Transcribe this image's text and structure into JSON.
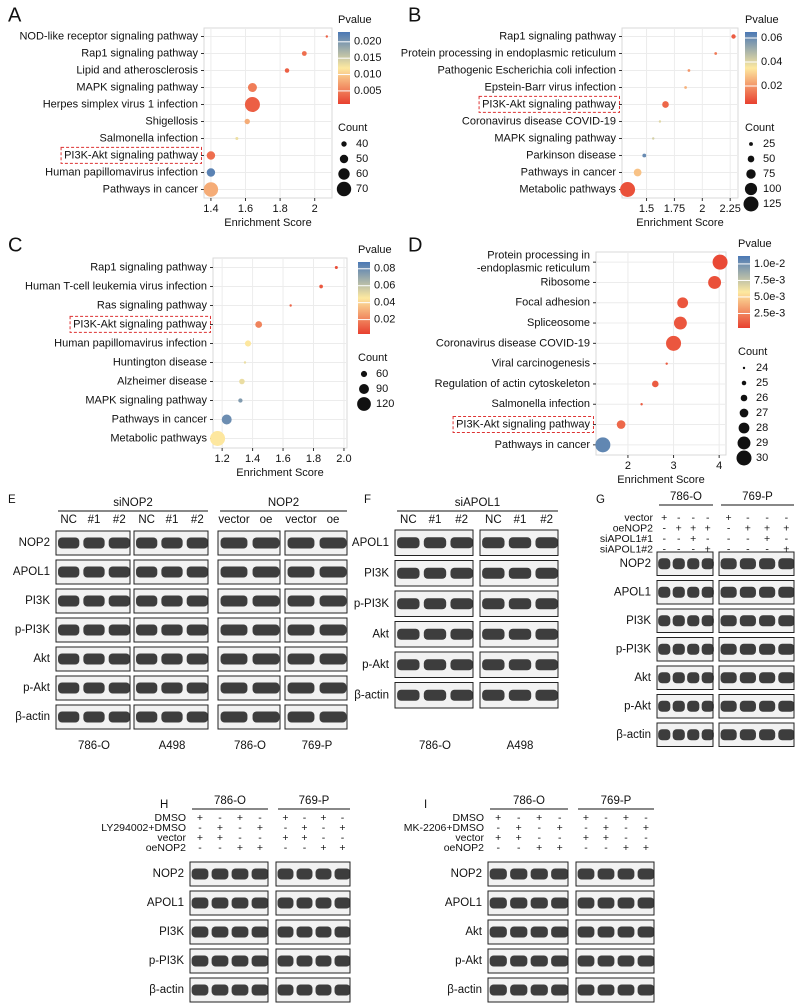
{
  "chart_data": [
    {
      "type": "scatter",
      "panel": "A",
      "x_label": "Enrichment Score",
      "legend_color_title": "Pvalue",
      "legend_size_title": "Count",
      "categories": [
        "NOD-like receptor signaling pathway",
        "Rap1 signaling pathway",
        "Lipid and atherosclerosis",
        "MAPK signaling pathway",
        "Herpes simplex virus 1 infection",
        "Shigellosis",
        "Salmonella infection",
        "PI3K-Akt signaling pathway",
        "Human papillomavirus infection",
        "Pathways in cancer"
      ],
      "x": [
        2.07,
        1.94,
        1.84,
        1.64,
        1.64,
        1.61,
        1.55,
        1.4,
        1.4,
        1.4
      ],
      "pvalue": [
        0.003,
        0.004,
        0.003,
        0.005,
        0.003,
        0.008,
        0.013,
        0.004,
        0.022,
        0.008
      ],
      "count": [
        30,
        38,
        37,
        52,
        72,
        40,
        32,
        50,
        50,
        70
      ],
      "xlim": [
        1.36,
        2.1
      ],
      "xticks": [
        1.4,
        1.6,
        1.8,
        2.0
      ],
      "clim": [
        0.001,
        0.023
      ],
      "cticks": [
        {
          "value": 0.02,
          "label": "0.020"
        },
        0.015,
        {
          "value": 0.01,
          "label": "0.010"
        },
        0.005
      ],
      "size_ticks": [
        40,
        50,
        60,
        70
      ],
      "colors": [
        "#e8402f",
        "#fde9a0",
        "#4a78b5"
      ],
      "grid": true,
      "highlight_index": 7
    },
    {
      "type": "scatter",
      "panel": "B",
      "x_label": "Enrichment Score",
      "legend_color_title": "Pvalue",
      "legend_size_title": "Count",
      "categories": [
        "Rap1 signaling pathway",
        "Protein processing in endoplasmic reticulum",
        "Pathogenic Escherichia coli infection",
        "Epstein-Barr virus infection",
        "PI3K-Akt signaling pathway",
        "Coronavirus disease COVID-19",
        "MAPK signaling pathway",
        "Parkinson disease",
        "Pathways in cancer",
        "Metabolic pathways"
      ],
      "x": [
        2.28,
        2.12,
        1.88,
        1.85,
        1.67,
        1.62,
        1.56,
        1.48,
        1.42,
        1.33
      ],
      "pvalue": [
        0.01,
        0.015,
        0.02,
        0.025,
        0.012,
        0.04,
        0.042,
        0.06,
        0.028,
        0.008
      ],
      "count": [
        30,
        15,
        15,
        15,
        50,
        12,
        12,
        25,
        60,
        125
      ],
      "xlim": [
        1.28,
        2.32
      ],
      "xticks": [
        1.5,
        1.75,
        2,
        2.25
      ],
      "clim": [
        0.005,
        0.065
      ],
      "cticks": [
        0.06,
        0.04,
        0.02
      ],
      "size_ticks": [
        25,
        50,
        75,
        100,
        125
      ],
      "colors": [
        "#e8402f",
        "#fde9a0",
        "#4a78b5"
      ],
      "grid": true,
      "highlight_index": 4
    },
    {
      "type": "scatter",
      "panel": "C",
      "x_label": "Enrichment Score",
      "legend_color_title": "Pvalue",
      "legend_size_title": "Count",
      "categories": [
        "Rap1 signaling pathway",
        "Human T-cell leukemia virus infection",
        "Ras signaling pathway",
        "PI3K-Akt signaling pathway",
        "Human papillomavirus infection",
        "Huntington disease",
        "Alzheimer disease",
        "MAPK signaling pathway",
        "Pathways in cancer",
        "Metabolic pathways"
      ],
      "x": [
        1.95,
        1.85,
        1.65,
        1.44,
        1.37,
        1.35,
        1.33,
        1.32,
        1.23,
        1.17
      ],
      "pvalue": [
        0.006,
        0.009,
        0.012,
        0.02,
        0.045,
        0.05,
        0.05,
        0.075,
        0.08,
        0.045
      ],
      "count": [
        35,
        40,
        30,
        65,
        60,
        30,
        55,
        45,
        90,
        130
      ],
      "xlim": [
        1.14,
        2.02
      ],
      "xticks": [
        1.2,
        1.4,
        1.6,
        1.8,
        {
          "value": 2,
          "label": "2.0"
        }
      ],
      "clim": [
        0.003,
        0.088
      ],
      "cticks": [
        0.08,
        0.06,
        0.04,
        0.02
      ],
      "size_ticks": [
        60,
        90,
        120
      ],
      "colors": [
        "#e8402f",
        "#fde9a0",
        "#4a78b5"
      ],
      "grid": true,
      "highlight_index": 3
    },
    {
      "type": "scatter",
      "panel": "D",
      "x_label": "Enrichment Score",
      "legend_color_title": "Pvalue",
      "legend_size_title": "Count",
      "categories": [
        "Protein processing in\n-endoplasmic reticulum",
        "Ribosome",
        "Focal adhesion",
        "Spliceosome",
        "Coronavirus disease COVID-19",
        "Viral carcinogenesis",
        "Regulation of actin cytoskeleton",
        "Salmonella infection",
        "PI3K-Akt signaling pathway",
        "Pathways in cancer"
      ],
      "x": [
        4.02,
        3.9,
        3.2,
        3.15,
        3.0,
        2.85,
        2.6,
        2.3,
        1.85,
        1.45
      ],
      "pvalue": [
        0.0006,
        0.0008,
        0.001,
        0.001,
        0.001,
        0.0012,
        0.0012,
        0.0012,
        0.0016,
        0.0105
      ],
      "count": [
        30,
        29,
        28,
        29,
        30,
        24,
        26,
        24,
        27,
        30
      ],
      "xlim": [
        1.3,
        4.15
      ],
      "xticks": [
        2,
        3,
        4
      ],
      "clim": [
        0.0003,
        0.0112
      ],
      "cticks": [
        {
          "value": 0.01,
          "label": "1.0e-2"
        },
        {
          "value": 0.0075,
          "label": "7.5e-3"
        },
        {
          "value": 0.005,
          "label": "5.0e-3"
        },
        {
          "value": 0.0025,
          "label": "2.5e-3"
        }
      ],
      "size_ticks": [
        24,
        25,
        26,
        27,
        28,
        29,
        30
      ],
      "colors": [
        "#e8402f",
        "#fde9a0",
        "#4a78b5"
      ],
      "grid": true,
      "highlight_index": 8
    }
  ],
  "blots": [
    {
      "panel": "E",
      "groups": [
        {
          "title": "siNOP2",
          "lanes": [
            "NC",
            "#1",
            "#2",
            "NC",
            "#1",
            "#2"
          ]
        },
        {
          "title": "NOP2",
          "lanes": [
            "vector",
            "oe",
            "vector",
            "oe"
          ]
        }
      ],
      "rows": [
        "NOP2",
        "APOL1",
        "PI3K",
        "p-PI3K",
        "Akt",
        "p-Akt",
        "β-actin"
      ],
      "cells": [
        "786-O",
        "A498",
        "786-O",
        "769-P"
      ]
    },
    {
      "panel": "F",
      "groups": [
        {
          "title": "siAPOL1",
          "lanes": [
            "NC",
            "#1",
            "#2",
            "NC",
            "#1",
            "#2"
          ]
        }
      ],
      "rows": [
        "APOL1",
        "PI3K",
        "p-PI3K",
        "Akt",
        "p-Akt",
        "β-actin"
      ],
      "cells": [
        "786-O",
        "A498"
      ]
    },
    {
      "panel": "G",
      "cells": [
        "786-O",
        "769-P"
      ],
      "conditions": [
        {
          "name": "vector",
          "signs": [
            "+",
            "-",
            "-",
            "-",
            "+",
            "-",
            "-",
            "-"
          ]
        },
        {
          "name": "oeNOP2",
          "signs": [
            "-",
            "+",
            "+",
            "+",
            "-",
            "+",
            "+",
            "+"
          ]
        },
        {
          "name": "siAPOL1#1",
          "signs": [
            "-",
            "-",
            "+",
            "-",
            "-",
            "-",
            "+",
            "-"
          ]
        },
        {
          "name": "siAPOL1#2",
          "signs": [
            "-",
            "-",
            "-",
            "+",
            "-",
            "-",
            "-",
            "+"
          ]
        }
      ],
      "rows": [
        "NOP2",
        "APOL1",
        "PI3K",
        "p-PI3K",
        "Akt",
        "p-Akt",
        "β-actin"
      ]
    },
    {
      "panel": "H",
      "cells": [
        "786-O",
        "769-P"
      ],
      "conditions": [
        {
          "name": "DMSO",
          "signs": [
            "+",
            "-",
            "+",
            "-",
            "+",
            "-",
            "+",
            "-"
          ]
        },
        {
          "name": "LY294002+DMSO",
          "signs": [
            "-",
            "+",
            "-",
            "+",
            "-",
            "+",
            "-",
            "+"
          ]
        },
        {
          "name": "vector",
          "signs": [
            "+",
            "+",
            "-",
            "-",
            "+",
            "+",
            "-",
            "-"
          ]
        },
        {
          "name": "oeNOP2",
          "signs": [
            "-",
            "-",
            "+",
            "+",
            "-",
            "-",
            "+",
            "+"
          ]
        }
      ],
      "rows": [
        "NOP2",
        "APOL1",
        "PI3K",
        "p-PI3K",
        "β-actin"
      ]
    },
    {
      "panel": "I",
      "cells": [
        "786-O",
        "769-P"
      ],
      "conditions": [
        {
          "name": "DMSO",
          "signs": [
            "+",
            "-",
            "+",
            "-",
            "+",
            "-",
            "+",
            "-"
          ]
        },
        {
          "name": "MK-2206+DMSO",
          "signs": [
            "-",
            "+",
            "-",
            "+",
            "-",
            "+",
            "-",
            "+"
          ]
        },
        {
          "name": "vector",
          "signs": [
            "+",
            "+",
            "-",
            "-",
            "+",
            "+",
            "-",
            "-"
          ]
        },
        {
          "name": "oeNOP2",
          "signs": [
            "-",
            "-",
            "+",
            "+",
            "-",
            "-",
            "+",
            "+"
          ]
        }
      ],
      "rows": [
        "NOP2",
        "APOL1",
        "Akt",
        "p-Akt",
        "β-actin"
      ]
    }
  ]
}
